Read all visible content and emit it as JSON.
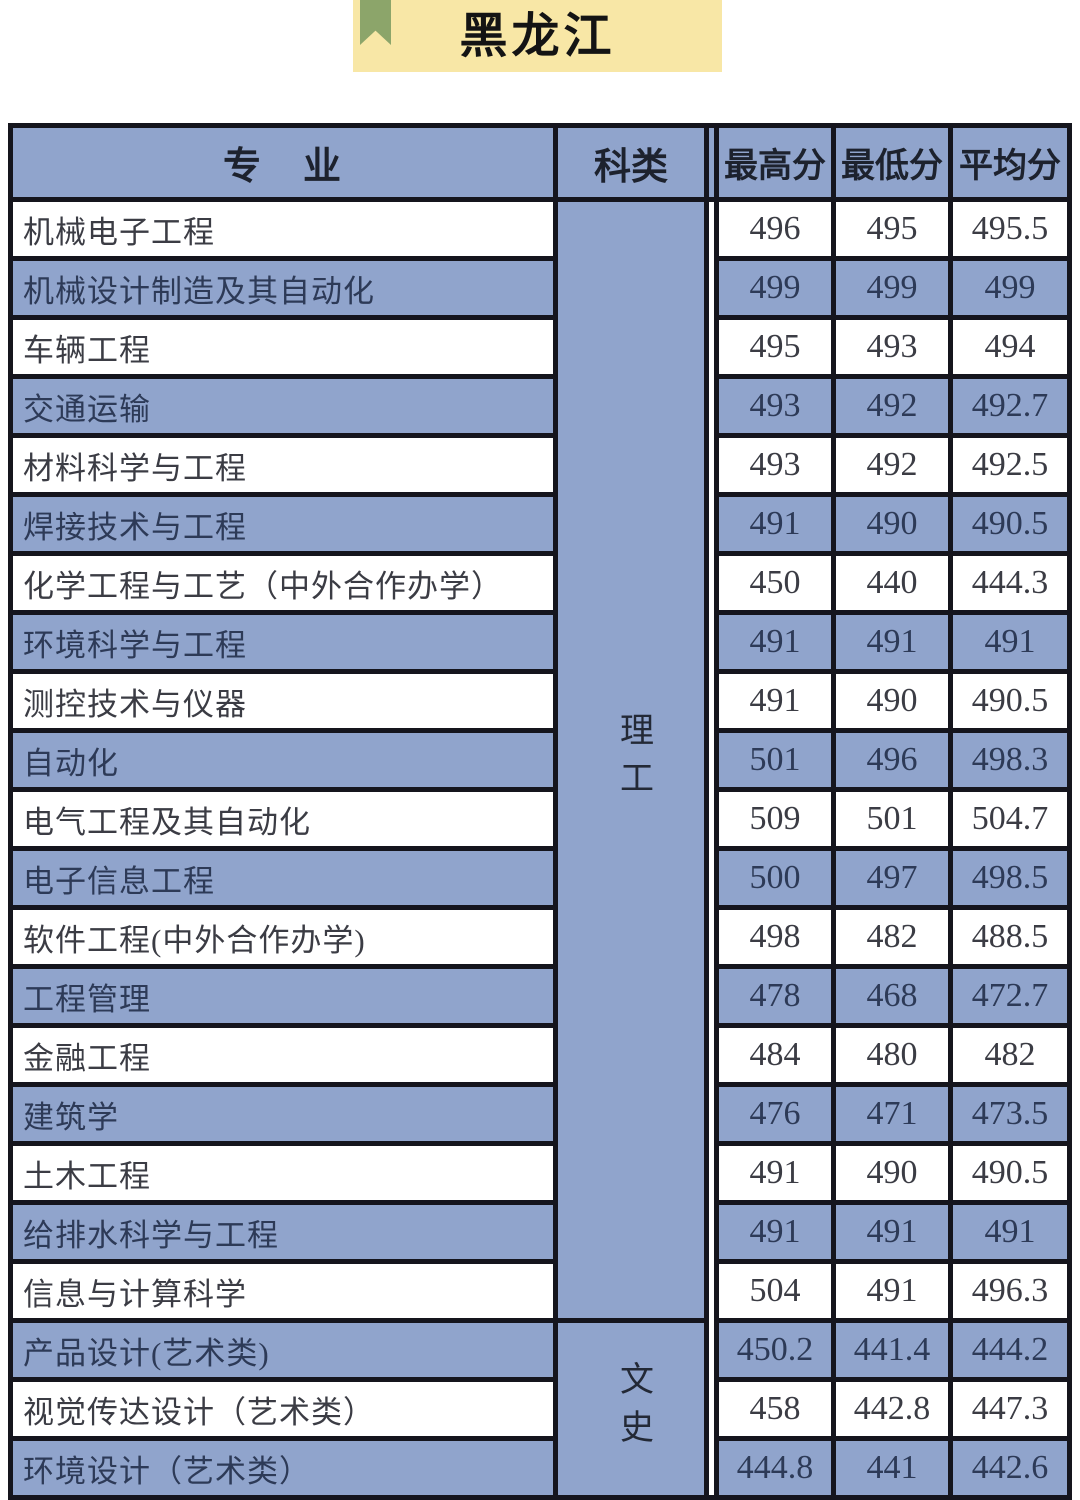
{
  "banner": {
    "title": "黑龙江",
    "bg_color": "#f8e7a6",
    "ribbon_color": "#8ca56a"
  },
  "table": {
    "headers": {
      "major": "专　业",
      "category": "科类",
      "max": "最高分",
      "min": "最低分",
      "avg": "平均分"
    },
    "colors": {
      "cell_blue": "#90a4cc",
      "border": "#15151d"
    },
    "sections": [
      {
        "category": "理工",
        "rowspan": 19
      },
      {
        "category": "文史",
        "rowspan": 3
      }
    ],
    "rows": [
      {
        "major": "机械电子工程",
        "max": "496",
        "min": "495",
        "avg": "495.5"
      },
      {
        "major": "机械设计制造及其自动化",
        "max": "499",
        "min": "499",
        "avg": "499"
      },
      {
        "major": "车辆工程",
        "max": "495",
        "min": "493",
        "avg": "494"
      },
      {
        "major": "交通运输",
        "max": "493",
        "min": "492",
        "avg": "492.7"
      },
      {
        "major": "材料科学与工程",
        "max": "493",
        "min": "492",
        "avg": "492.5"
      },
      {
        "major": "焊接技术与工程",
        "max": "491",
        "min": "490",
        "avg": "490.5"
      },
      {
        "major": "化学工程与工艺（中外合作办学）",
        "max": "450",
        "min": "440",
        "avg": "444.3"
      },
      {
        "major": "环境科学与工程",
        "max": "491",
        "min": "491",
        "avg": "491"
      },
      {
        "major": "测控技术与仪器",
        "max": "491",
        "min": "490",
        "avg": "490.5"
      },
      {
        "major": "自动化",
        "max": "501",
        "min": "496",
        "avg": "498.3"
      },
      {
        "major": "电气工程及其自动化",
        "max": "509",
        "min": "501",
        "avg": "504.7"
      },
      {
        "major": "电子信息工程",
        "max": "500",
        "min": "497",
        "avg": "498.5"
      },
      {
        "major": "软件工程(中外合作办学)",
        "max": "498",
        "min": "482",
        "avg": "488.5"
      },
      {
        "major": "工程管理",
        "max": "478",
        "min": "468",
        "avg": "472.7"
      },
      {
        "major": "金融工程",
        "max": "484",
        "min": "480",
        "avg": "482"
      },
      {
        "major": "建筑学",
        "max": "476",
        "min": "471",
        "avg": "473.5"
      },
      {
        "major": "土木工程",
        "max": "491",
        "min": "490",
        "avg": "490.5"
      },
      {
        "major": "给排水科学与工程",
        "max": "491",
        "min": "491",
        "avg": "491"
      },
      {
        "major": "信息与计算科学",
        "max": "504",
        "min": "491",
        "avg": "496.3"
      },
      {
        "major": "产品设计(艺术类)",
        "max": "450.2",
        "min": "441.4",
        "avg": "444.2"
      },
      {
        "major": "视觉传达设计（艺术类）",
        "max": "458",
        "min": "442.8",
        "avg": "447.3"
      },
      {
        "major": "环境设计（艺术类）",
        "max": "444.8",
        "min": "441",
        "avg": "442.6"
      }
    ]
  }
}
